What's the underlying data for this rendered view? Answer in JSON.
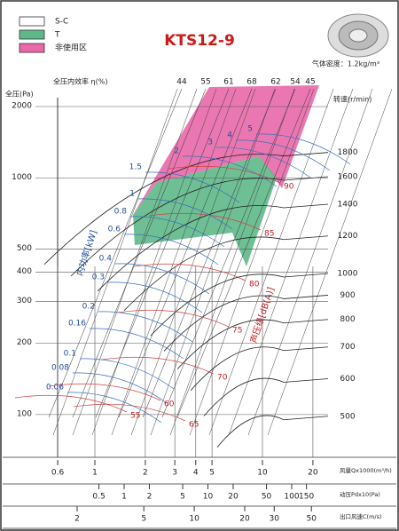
{
  "chart_data": {
    "type": "fan-curve",
    "title": "KTS12-9",
    "legend": [
      {
        "name": "S-C",
        "color": "#ffffff"
      },
      {
        "name": "T",
        "color": "#5fb88a"
      },
      {
        "name": "非使用区",
        "color": "#e868a8"
      }
    ],
    "density_note": "气体密度：1.2kg/m³",
    "efficiency_title": "全压内效率 η(%)",
    "efficiency_ticks": [
      44,
      55,
      61,
      68,
      62,
      54,
      45
    ],
    "y_title": "全压(Pa)",
    "log_y": true,
    "ylim": [
      66,
      2000
    ],
    "yticks": [
      100,
      200,
      300,
      400,
      500,
      1000,
      2000
    ],
    "speed_title": "转速(r/min)",
    "speeds": [
      1800,
      1600,
      1400,
      1200,
      1000,
      900,
      800,
      700,
      600,
      500
    ],
    "power_title": "内功率[kW]",
    "power_labels": [
      5,
      4,
      3,
      2,
      1.5,
      1,
      0.8,
      0.6,
      0.4,
      0.3,
      0.2,
      0.16,
      0.1,
      0.08,
      0.06
    ],
    "noise_title": "声压级[dB(A)]",
    "noise_labels": [
      90,
      85,
      80,
      75,
      70,
      65,
      60,
      55
    ],
    "x_scales": [
      {
        "name": "风量Qx1000(m³/h)",
        "ticks": [
          0.6,
          1,
          2,
          3,
          4,
          5,
          10,
          20
        ]
      },
      {
        "name": "动压Pdx10(Pa)",
        "ticks": [
          0.5,
          1,
          2,
          5,
          10,
          20,
          50,
          100,
          150
        ]
      },
      {
        "name": "出口风速C(m/s)",
        "ticks": [
          2,
          5,
          10,
          20,
          30,
          50
        ]
      }
    ]
  }
}
